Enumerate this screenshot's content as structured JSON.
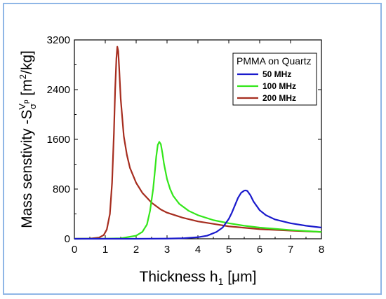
{
  "chart_data": {
    "type": "line",
    "title": "",
    "xlabel": "Thickness h₁ [μm]",
    "ylabel": "Mass senstivity  -Sᵛσᵖ [m²/kg]",
    "xlabel_parts": {
      "main": "Thickness h",
      "sub": "1",
      "rest": " [μm]"
    },
    "ylabel_parts": {
      "main": "Mass senstivity  -S",
      "sup": "V",
      "sub": "σ",
      "subsub": "p",
      "rest": " [m",
      "sup2": "2",
      "end": "/kg]"
    },
    "xlim": [
      0,
      8
    ],
    "ylim": [
      0,
      3200
    ],
    "x_ticks": [
      "0",
      "1",
      "2",
      "3",
      "4",
      "5",
      "6",
      "7",
      "8"
    ],
    "y_ticks": [
      "0",
      "800",
      "1600",
      "2400",
      "3200"
    ],
    "grid": false,
    "legend": {
      "title": "PMMA on Quartz",
      "placement": "top-right"
    },
    "series": [
      {
        "name": "50 MHz",
        "color": "#1a1acc",
        "x": [
          0,
          2.0,
          3.0,
          3.5,
          4.0,
          4.3,
          4.6,
          4.8,
          5.0,
          5.1,
          5.2,
          5.3,
          5.4,
          5.5,
          5.55,
          5.6,
          5.7,
          5.8,
          6.0,
          6.2,
          6.5,
          7.0,
          7.5,
          8.0
        ],
        "y": [
          0,
          0,
          3,
          8,
          25,
          50,
          110,
          180,
          320,
          420,
          540,
          660,
          740,
          775,
          778,
          770,
          700,
          600,
          460,
          380,
          310,
          250,
          210,
          180
        ]
      },
      {
        "name": "100 MHz",
        "color": "#33e61a",
        "x": [
          0,
          1.0,
          1.5,
          2.0,
          2.2,
          2.35,
          2.45,
          2.55,
          2.6,
          2.65,
          2.7,
          2.75,
          2.8,
          2.85,
          2.9,
          3.0,
          3.1,
          3.2,
          3.4,
          3.7,
          4.0,
          4.5,
          5.0,
          5.5,
          6.0,
          7.0,
          8.0
        ],
        "y": [
          0,
          2,
          8,
          50,
          110,
          230,
          450,
          800,
          1050,
          1320,
          1510,
          1560,
          1520,
          1380,
          1210,
          960,
          800,
          690,
          560,
          450,
          380,
          300,
          250,
          210,
          180,
          140,
          110
        ]
      },
      {
        "name": "200 MHz",
        "color": "#a62d1f",
        "x": [
          0,
          0.5,
          0.8,
          0.95,
          1.05,
          1.15,
          1.22,
          1.28,
          1.32,
          1.36,
          1.39,
          1.42,
          1.45,
          1.5,
          1.6,
          1.7,
          1.8,
          2.0,
          2.2,
          2.5,
          2.8,
          3.0,
          3.5,
          4.0,
          4.5,
          5.0,
          6.0,
          7.0,
          8.0
        ],
        "y": [
          0,
          3,
          20,
          60,
          150,
          400,
          900,
          1700,
          2400,
          2900,
          3090,
          3020,
          2750,
          2250,
          1650,
          1350,
          1140,
          900,
          740,
          580,
          470,
          420,
          340,
          280,
          240,
          200,
          155,
          130,
          110
        ]
      }
    ]
  }
}
